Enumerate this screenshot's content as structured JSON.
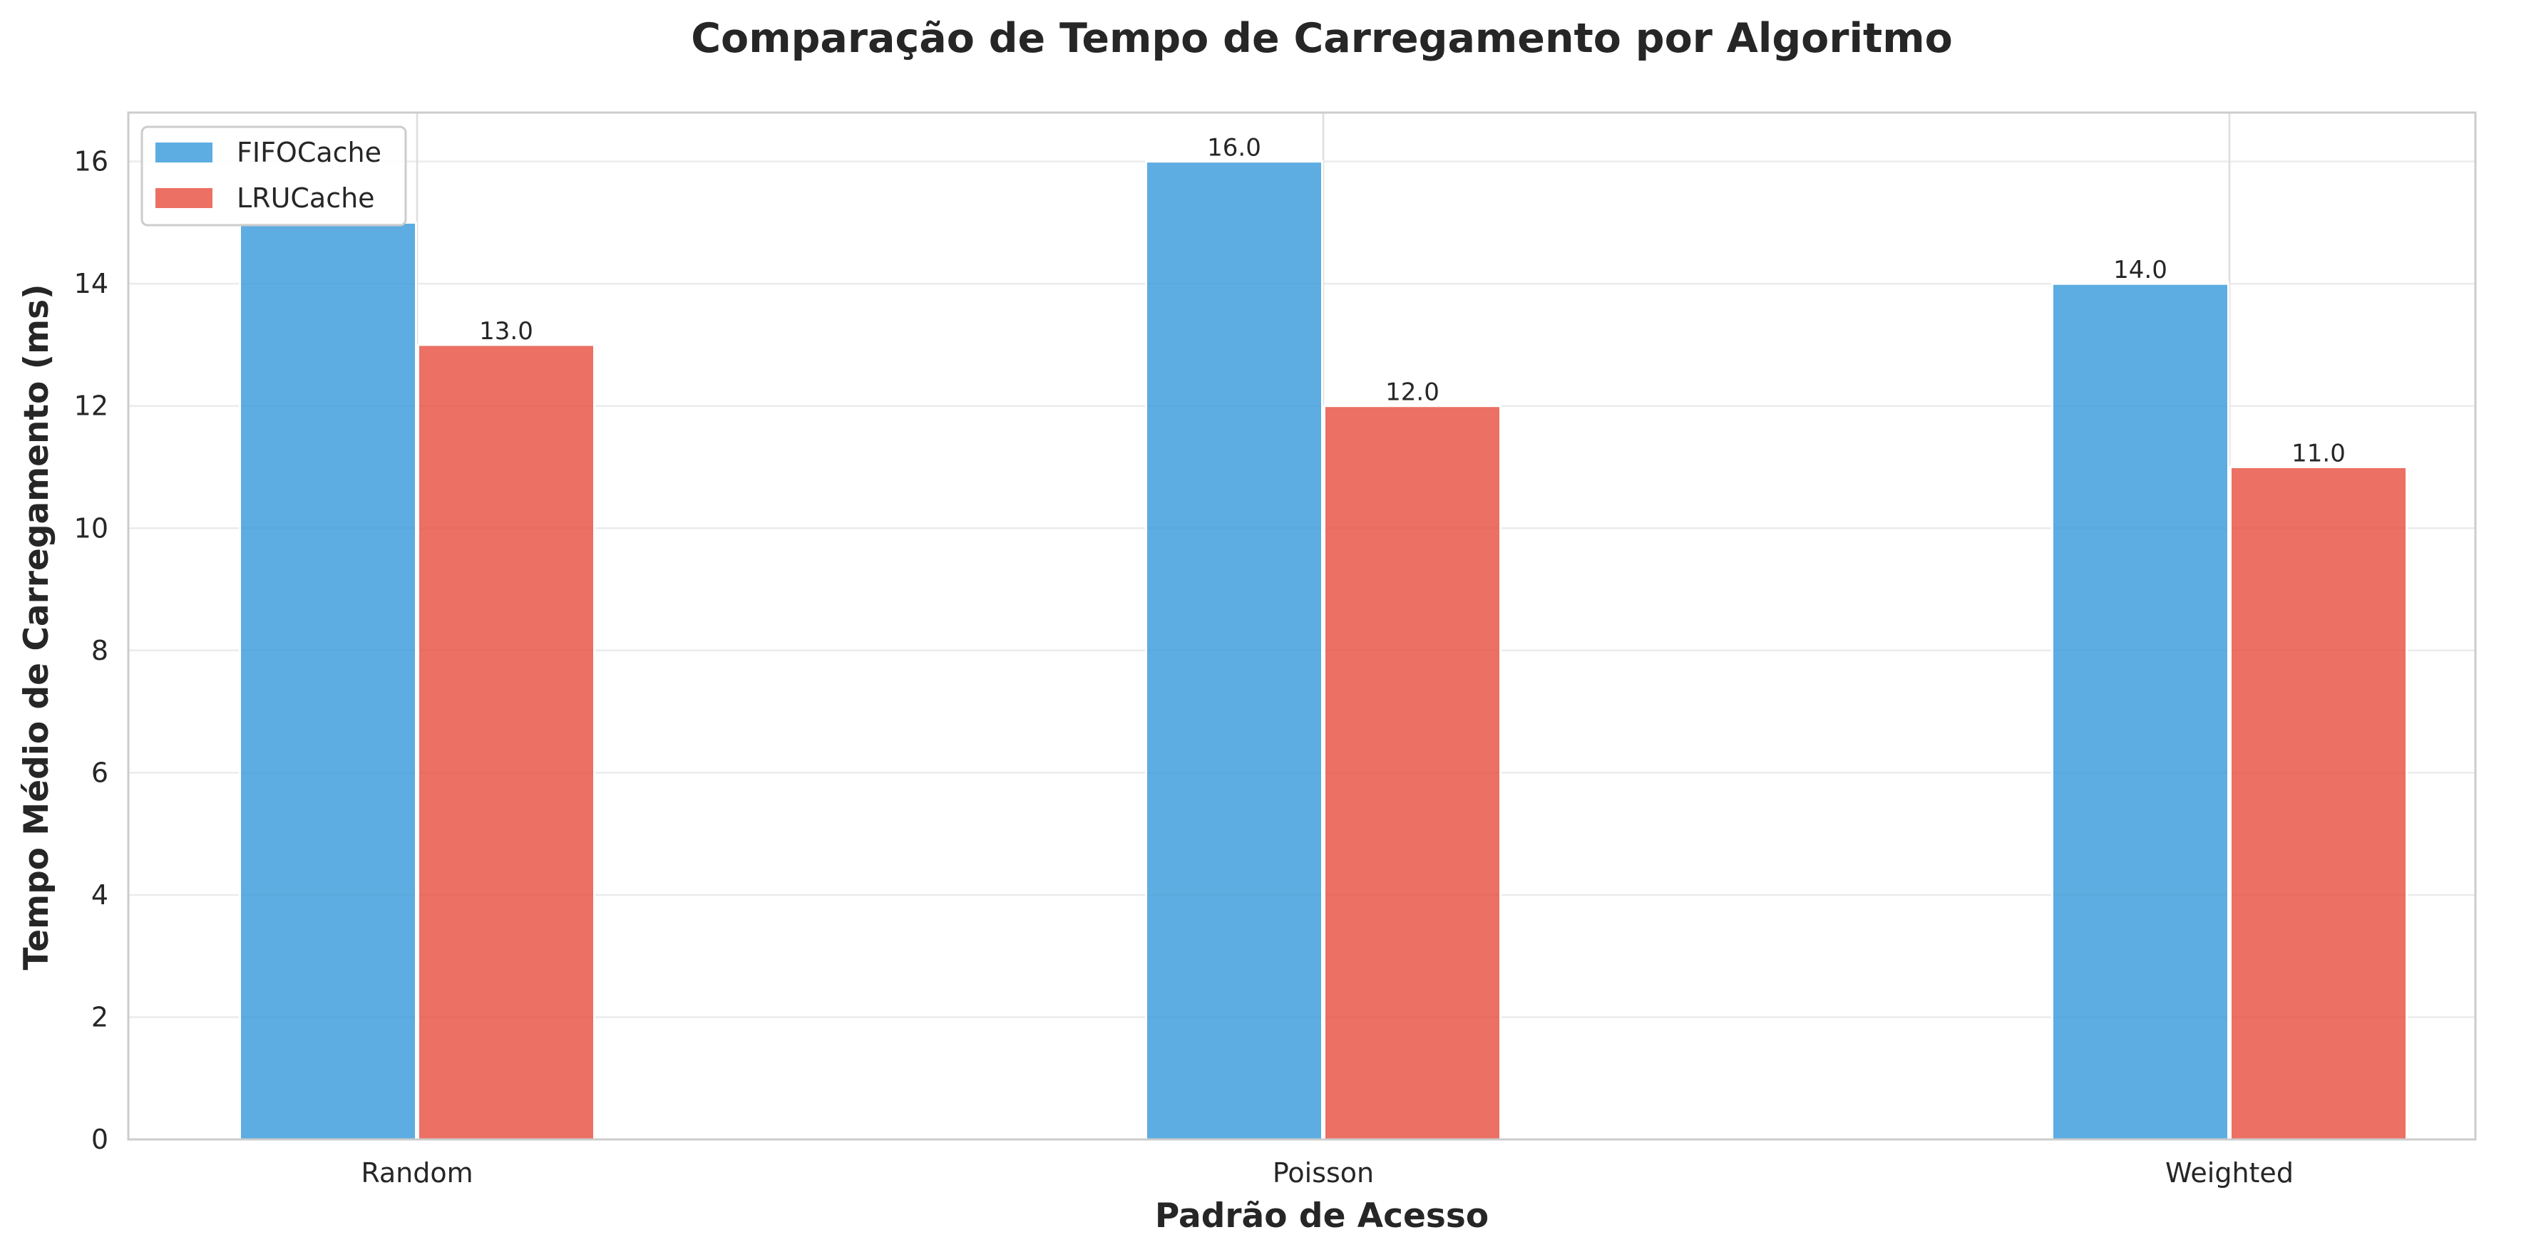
{
  "chart_data": {
    "type": "bar",
    "title": "Comparação de Tempo de Carregamento por Algoritmo",
    "xlabel": "Padrão de Acesso",
    "ylabel": "Tempo Médio de Carregamento (ms)",
    "categories": [
      "Random",
      "Poisson",
      "Weighted"
    ],
    "series": [
      {
        "name": "FIFOCache",
        "values": [
          15.0,
          16.0,
          14.0
        ],
        "color": "#3498db",
        "show_labels": [
          false,
          true,
          true
        ]
      },
      {
        "name": "LRUCache",
        "values": [
          13.0,
          12.0,
          11.0
        ],
        "color": "#e74c3c",
        "show_labels": [
          true,
          true,
          true
        ]
      }
    ],
    "ylim": [
      0,
      16.8
    ],
    "yticks": [
      0,
      2,
      4,
      6,
      8,
      10,
      12,
      14,
      16
    ],
    "grid": true,
    "legend_position": "top-left"
  }
}
